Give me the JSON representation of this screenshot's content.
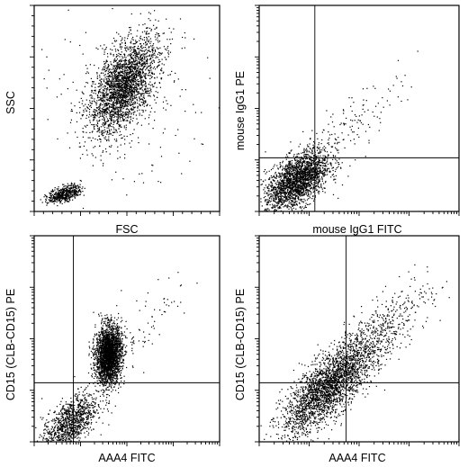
{
  "chart_data": [
    {
      "type": "scatter",
      "xlabel": "FSC",
      "ylabel": "SSC",
      "scale": "linear",
      "xlim": [
        0,
        1023
      ],
      "ylim": [
        0,
        1023
      ],
      "gate": null,
      "populations": [
        {
          "cx": 490,
          "cy": 620,
          "sx": 95,
          "sy": 120,
          "rho": 0.55,
          "n": 2600
        },
        {
          "cx": 165,
          "cy": 90,
          "sx": 45,
          "sy": 22,
          "rho": 0.5,
          "n": 500
        },
        {
          "cx": 500,
          "cy": 500,
          "sx": 280,
          "sy": 280,
          "rho": 0.0,
          "n": 180
        }
      ]
    },
    {
      "type": "scatter",
      "xlabel": "mouse IgG1 FITC",
      "ylabel": "mouse IgG1 PE",
      "scale": "log",
      "xlim": [
        1,
        10000
      ],
      "ylim": [
        1,
        10000
      ],
      "gate": {
        "x": 13,
        "y": 11
      },
      "populations": [
        {
          "cx": 0.75,
          "cy": 0.6,
          "sx": 0.32,
          "sy": 0.3,
          "rho": 0.55,
          "n": 2200
        },
        {
          "cx": 1.8,
          "cy": 1.7,
          "sx": 0.55,
          "sy": 0.5,
          "rho": 0.85,
          "n": 150
        }
      ]
    },
    {
      "type": "scatter",
      "xlabel": "AAA4 FITC",
      "ylabel": "CD15 (CLB-CD15) PE",
      "scale": "log",
      "xlim": [
        1,
        10000
      ],
      "ylim": [
        1,
        10000
      ],
      "gate": {
        "x": 7,
        "y": 14
      },
      "populations": [
        {
          "cx": 1.6,
          "cy": 1.7,
          "sx": 0.14,
          "sy": 0.28,
          "rho": 0.1,
          "n": 2600
        },
        {
          "cx": 0.75,
          "cy": 0.35,
          "sx": 0.3,
          "sy": 0.3,
          "rho": 0.6,
          "n": 1100
        },
        {
          "cx": 2.3,
          "cy": 2.2,
          "sx": 0.55,
          "sy": 0.55,
          "rho": 0.85,
          "n": 90
        }
      ]
    },
    {
      "type": "scatter",
      "xlabel": "AAA4 FITC",
      "ylabel": "CD15 (CLB-CD15) PE",
      "scale": "log",
      "xlim": [
        1,
        10000
      ],
      "ylim": [
        1,
        10000
      ],
      "gate": {
        "x": 55,
        "y": 14
      },
      "populations": [
        {
          "cx": 1.35,
          "cy": 1.05,
          "sx": 0.45,
          "sy": 0.45,
          "rho": 0.75,
          "n": 2400
        },
        {
          "cx": 2.3,
          "cy": 2.0,
          "sx": 0.55,
          "sy": 0.55,
          "rho": 0.8,
          "n": 600
        }
      ]
    }
  ]
}
